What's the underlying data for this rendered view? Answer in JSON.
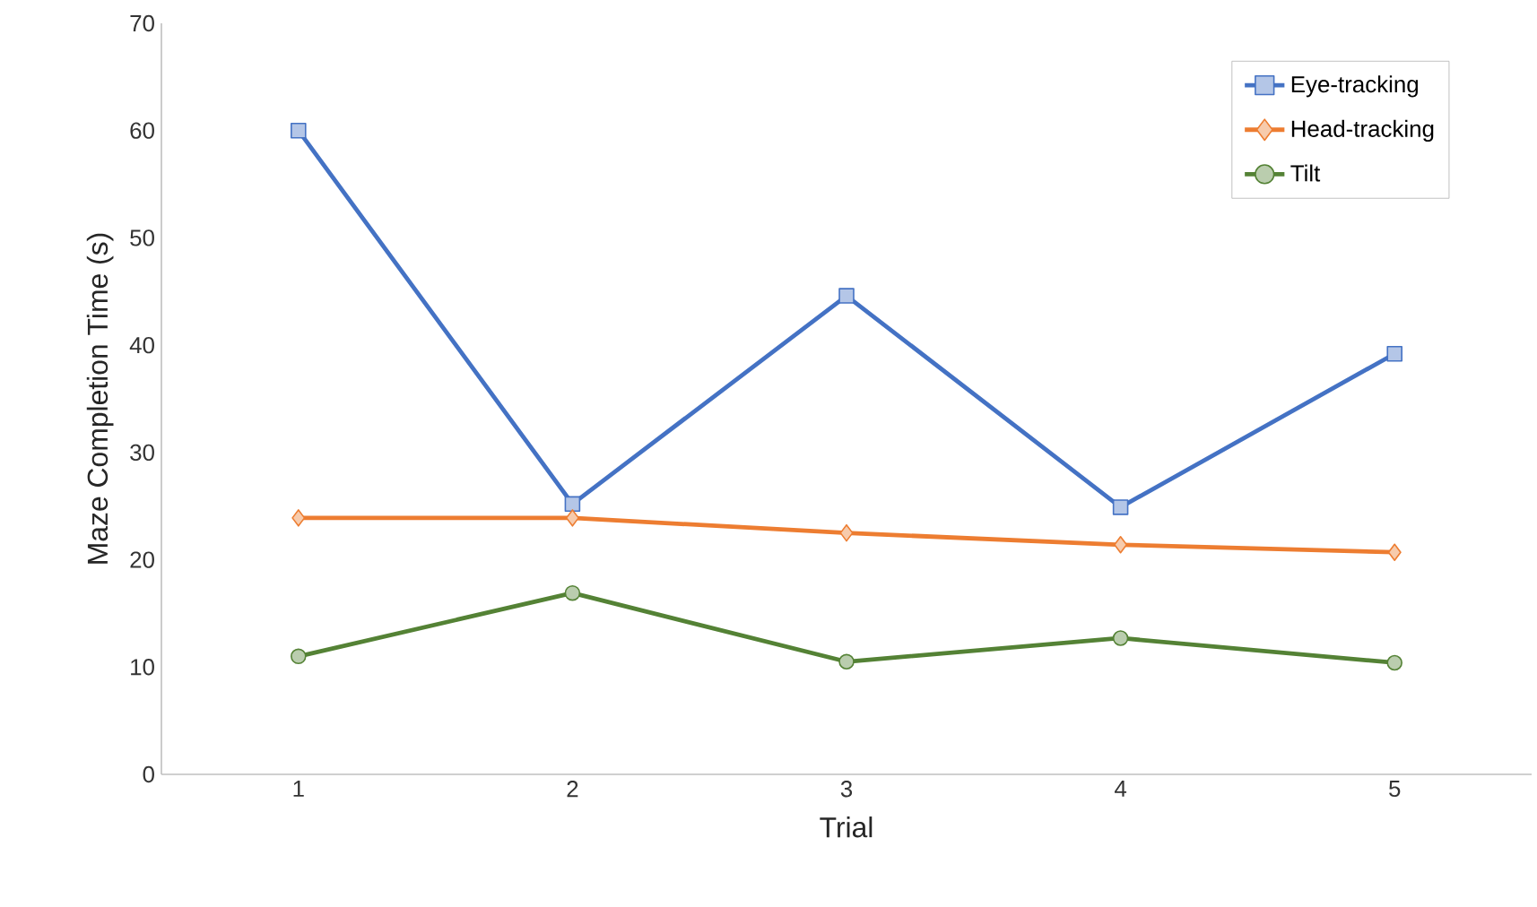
{
  "chart_data": {
    "type": "line",
    "xlabel": "Trial",
    "ylabel": "Maze Completion Time (s)",
    "categories": [
      "1",
      "2",
      "3",
      "4",
      "5"
    ],
    "series": [
      {
        "name": "Eye-tracking",
        "color": "#4472c4",
        "marker": "square",
        "values": [
          60,
          25.2,
          44.6,
          24.9,
          39.2
        ]
      },
      {
        "name": "Head-tracking",
        "color": "#ed7d31",
        "marker": "diamond",
        "values": [
          23.9,
          23.9,
          22.5,
          21.4,
          20.7
        ]
      },
      {
        "name": "Tilt",
        "color": "#548235",
        "marker": "circle",
        "values": [
          11.0,
          16.9,
          10.5,
          12.7,
          10.4
        ]
      }
    ],
    "ylim": [
      0,
      70
    ],
    "yticks": [
      0,
      10,
      20,
      30,
      40,
      50,
      60,
      70
    ],
    "grid": false,
    "legend": "top right",
    "line_style": "solid"
  }
}
